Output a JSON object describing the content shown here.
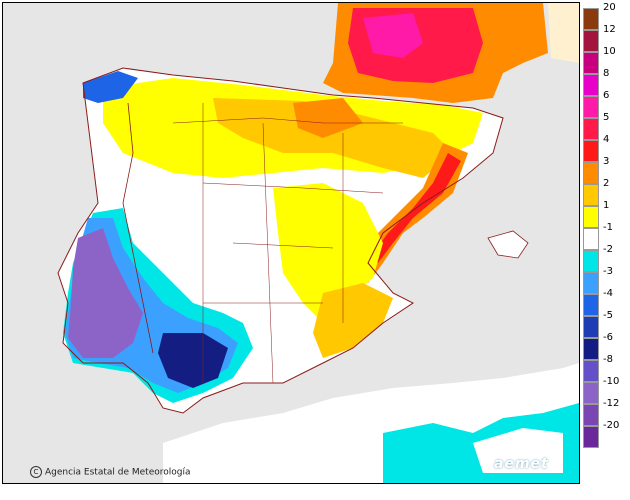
{
  "credit": {
    "copyright_symbol": "C",
    "agency": "Agencia Estatal de Meteorología"
  },
  "logo": "aemet",
  "legend": {
    "warm": [
      {
        "label": "20",
        "color": "#8b3a0e"
      },
      {
        "label": "12",
        "color": "#a3153f"
      },
      {
        "label": "10",
        "color": "#c8007f"
      },
      {
        "label": "8",
        "color": "#e800c8"
      },
      {
        "label": "6",
        "color": "#ff1aa8"
      },
      {
        "label": "5",
        "color": "#ff1a4a"
      },
      {
        "label": "4",
        "color": "#ff1a1a"
      },
      {
        "label": "3",
        "color": "#ff8c00"
      },
      {
        "label": "2",
        "color": "#ffc800"
      },
      {
        "label": "1",
        "color": "#ffff00"
      }
    ],
    "neutral": {
      "label": "-1",
      "color": "#ffffff"
    },
    "cold": [
      {
        "label": "-2",
        "color": "#00e6e6"
      },
      {
        "label": "-3",
        "color": "#3ca0ff"
      },
      {
        "label": "-4",
        "color": "#1e64e6"
      },
      {
        "label": "-5",
        "color": "#1e3cb4"
      },
      {
        "label": "-6",
        "color": "#141e82"
      },
      {
        "label": "-8",
        "color": "#6450c8"
      },
      {
        "label": "-10",
        "color": "#8c64c8"
      },
      {
        "label": "-12",
        "color": "#7a46b4"
      },
      {
        "label": "-20",
        "color": "#6a289a"
      }
    ]
  }
}
